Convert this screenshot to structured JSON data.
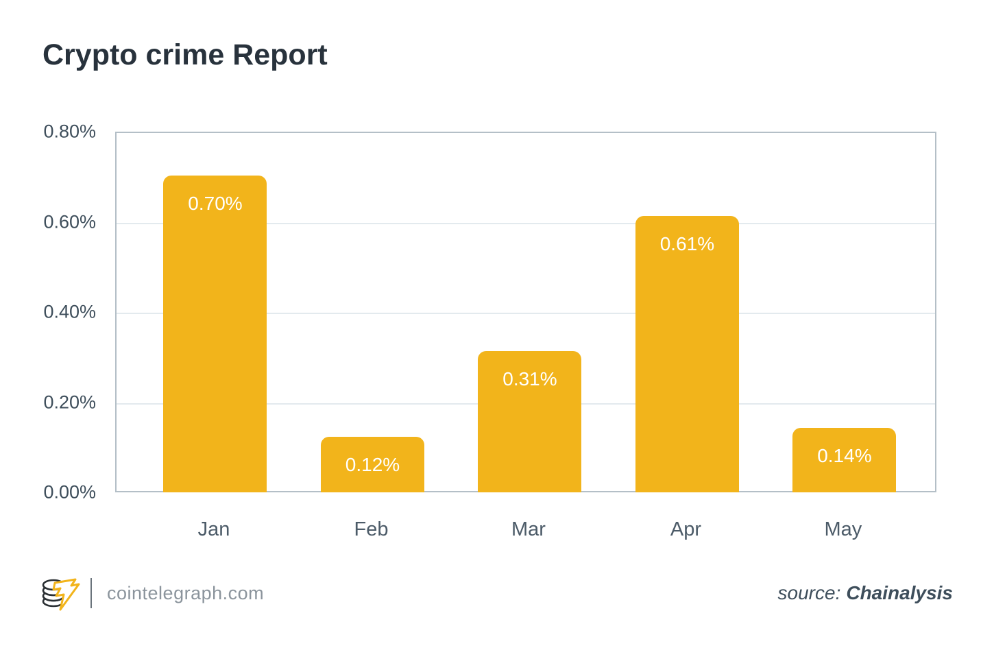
{
  "title": "Crypto crime Report",
  "chart_data": {
    "type": "bar",
    "title": "Crypto crime Report",
    "categories": [
      "Jan",
      "Feb",
      "Mar",
      "Apr",
      "May"
    ],
    "values": [
      0.7,
      0.12,
      0.31,
      0.61,
      0.14
    ],
    "value_labels": [
      "0.70%",
      "0.12%",
      "0.31%",
      "0.61%",
      "0.14%"
    ],
    "xlabel": "",
    "ylabel": "",
    "ylim": [
      0.0,
      0.8
    ],
    "y_tick_step": 0.2,
    "y_tick_labels": [
      "0.00%",
      "0.20%",
      "0.40%",
      "0.60%",
      "0.80%"
    ],
    "grid": true,
    "legend": "none",
    "bar_color": "#F2B41B",
    "bar_label_color": "#ffffff",
    "axis_label_color": "#3e4e5b",
    "grid_color": "#e3eaee",
    "plot_border_color": "#b4bfc7"
  },
  "footer": {
    "logo_name": "cointelegraph-logo",
    "brand_text": "cointelegraph.com",
    "source_label": "source:",
    "source_value": "Chainalysis",
    "logo_bolt_color": "#F2B41B",
    "logo_coin_color": "#2a2f33"
  }
}
